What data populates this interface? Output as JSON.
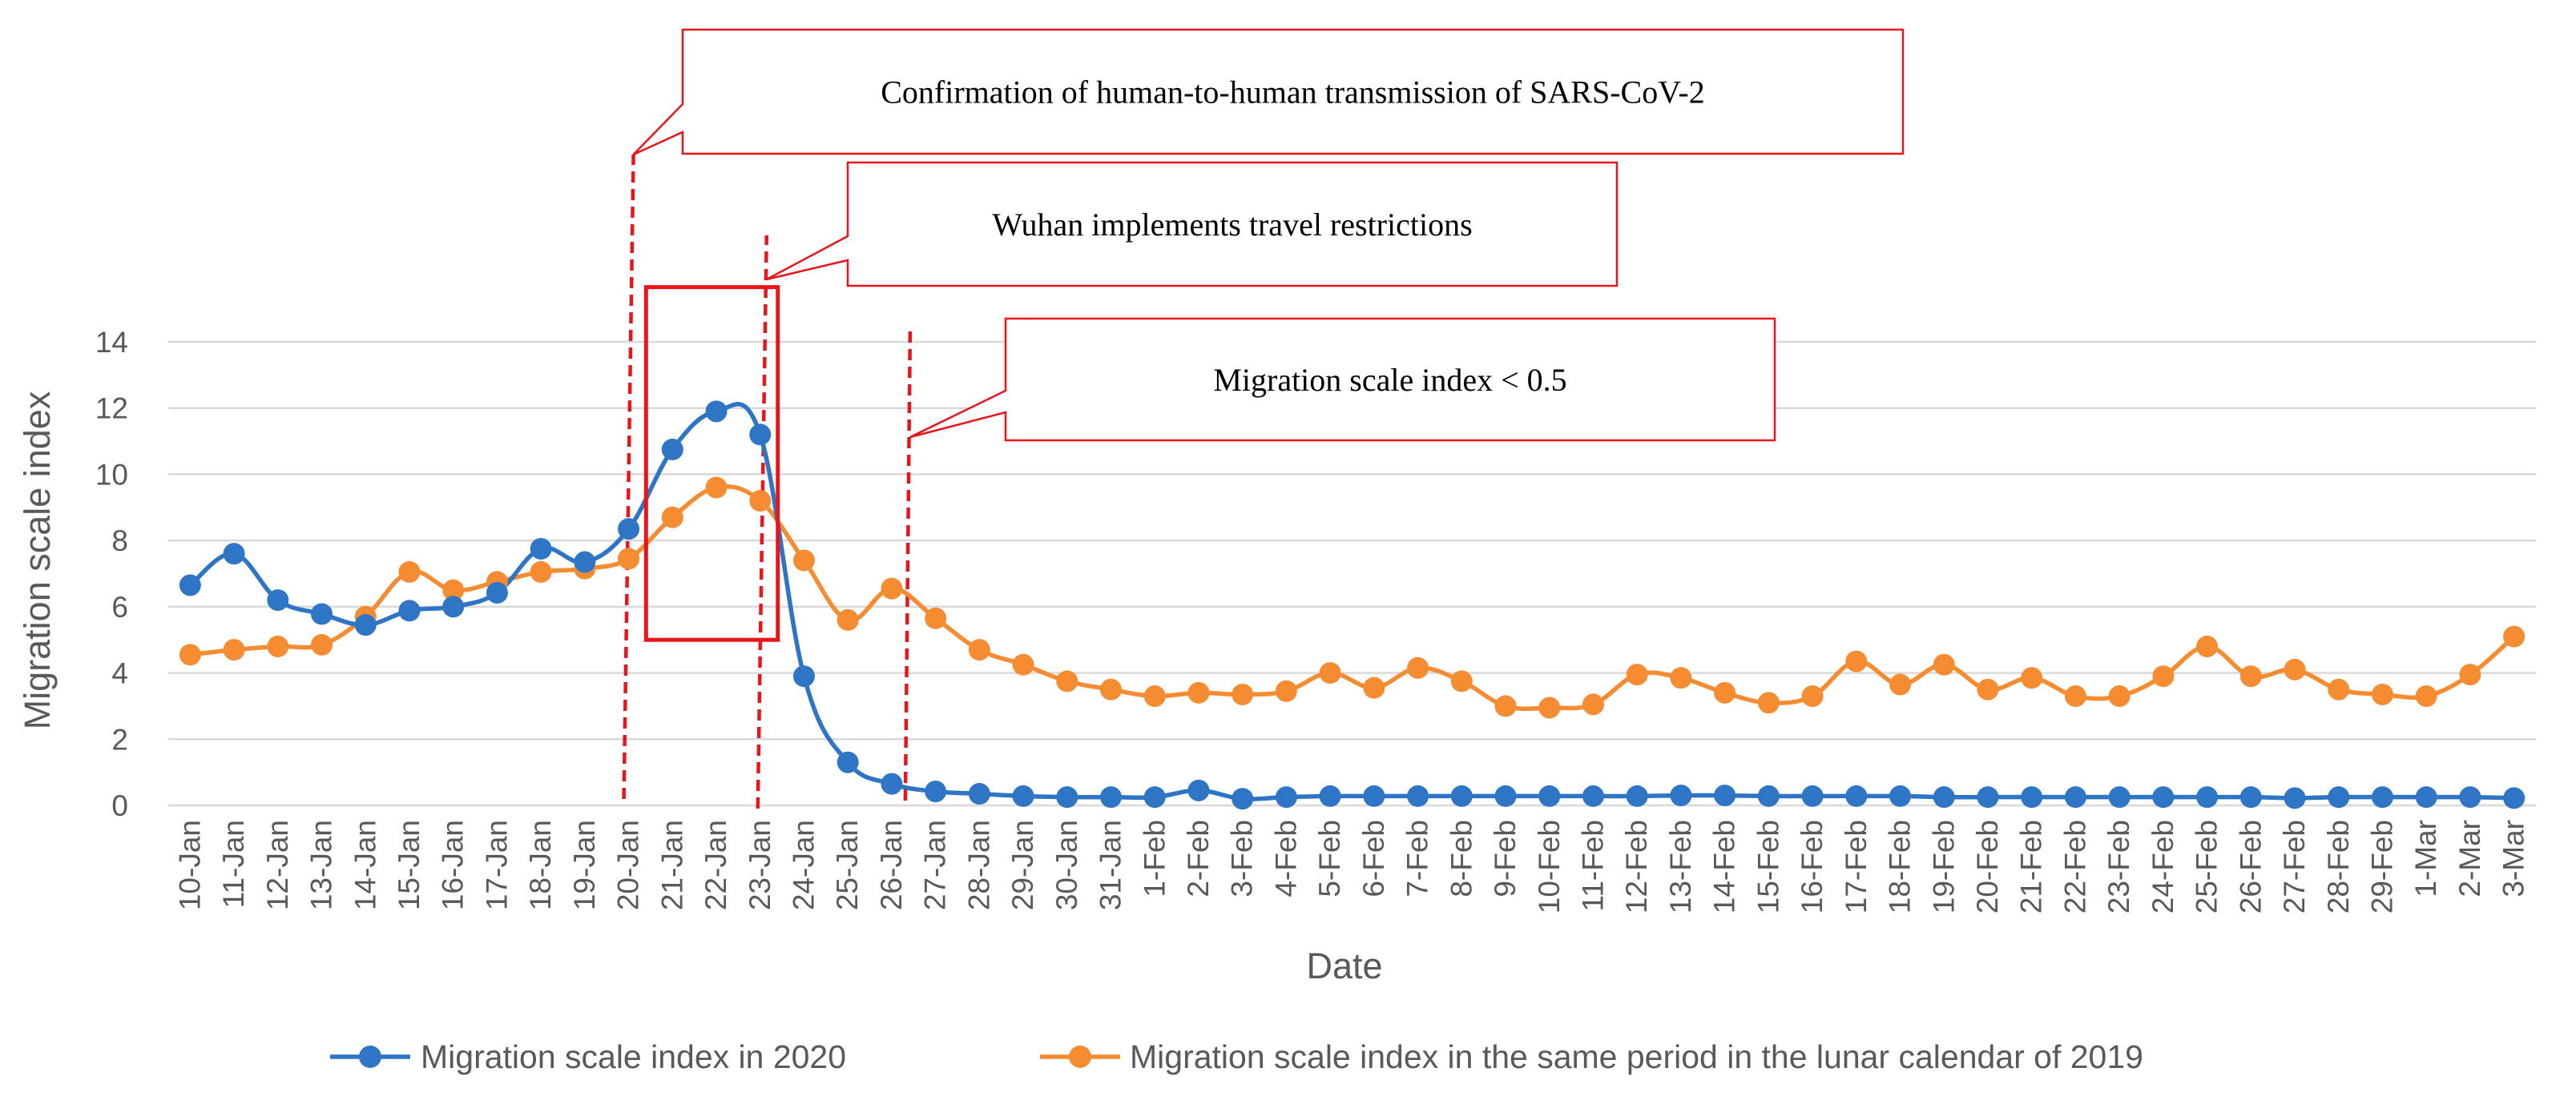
{
  "chart_data": {
    "type": "line",
    "title": "",
    "xlabel": "Date",
    "ylabel": "Migration scale index",
    "ylim": [
      0,
      14
    ],
    "yticks": [
      0,
      2,
      4,
      6,
      8,
      10,
      12,
      14
    ],
    "grid": true,
    "legend_position": "bottom",
    "categories": [
      "10-Jan",
      "11-Jan",
      "12-Jan",
      "13-Jan",
      "14-Jan",
      "15-Jan",
      "16-Jan",
      "17-Jan",
      "18-Jan",
      "19-Jan",
      "20-Jan",
      "21-Jan",
      "22-Jan",
      "23-Jan",
      "24-Jan",
      "25-Jan",
      "26-Jan",
      "27-Jan",
      "28-Jan",
      "29-Jan",
      "30-Jan",
      "31-Jan",
      "1-Feb",
      "2-Feb",
      "3-Feb",
      "4-Feb",
      "5-Feb",
      "6-Feb",
      "7-Feb",
      "8-Feb",
      "9-Feb",
      "10-Feb",
      "11-Feb",
      "12-Feb",
      "13-Feb",
      "14-Feb",
      "15-Feb",
      "16-Feb",
      "17-Feb",
      "18-Feb",
      "19-Feb",
      "20-Feb",
      "21-Feb",
      "22-Feb",
      "23-Feb",
      "24-Feb",
      "25-Feb",
      "26-Feb",
      "27-Feb",
      "28-Feb",
      "29-Feb",
      "1-Mar",
      "2-Mar",
      "3-Mar"
    ],
    "series": [
      {
        "name": "Migration scale index in 2020",
        "color": "#2E75C6",
        "values": [
          6.65,
          7.6,
          6.2,
          5.78,
          5.45,
          5.88,
          6.0,
          6.42,
          7.75,
          7.35,
          8.35,
          10.75,
          11.9,
          11.2,
          3.9,
          1.3,
          0.65,
          0.42,
          0.35,
          0.28,
          0.25,
          0.25,
          0.25,
          0.45,
          0.2,
          0.25,
          0.28,
          0.28,
          0.28,
          0.28,
          0.28,
          0.28,
          0.28,
          0.28,
          0.3,
          0.3,
          0.28,
          0.28,
          0.28,
          0.28,
          0.25,
          0.25,
          0.25,
          0.25,
          0.25,
          0.25,
          0.25,
          0.25,
          0.22,
          0.25,
          0.25,
          0.25,
          0.25,
          0.22
        ]
      },
      {
        "name": "Migration scale index in the same period in the lunar calendar of 2019",
        "color": "#F58C32",
        "values": [
          4.55,
          4.7,
          4.8,
          4.85,
          5.7,
          7.05,
          6.5,
          6.75,
          7.05,
          7.15,
          7.45,
          8.7,
          9.6,
          9.2,
          7.4,
          5.6,
          6.55,
          5.65,
          4.7,
          4.25,
          3.75,
          3.5,
          3.3,
          3.4,
          3.35,
          3.45,
          4.0,
          3.55,
          4.15,
          3.75,
          3.0,
          2.95,
          3.05,
          3.95,
          3.85,
          3.4,
          3.1,
          3.3,
          4.35,
          3.65,
          4.25,
          3.5,
          3.85,
          3.3,
          3.3,
          3.9,
          4.8,
          3.9,
          4.1,
          3.5,
          3.35,
          3.3,
          3.95,
          5.1
        ]
      }
    ],
    "annotations": [
      {
        "text": "Confirmation of human-to-human transmission of SARS-CoV-2",
        "marker_date": "20-Jan"
      },
      {
        "text": "Wuhan implements travel restrictions",
        "marker_date": "23-Jan"
      },
      {
        "text": "Migration scale index < 0.5",
        "marker_date": "26-Jan"
      }
    ],
    "highlight_box": {
      "from_date": "21-Jan",
      "to_date": "23-Jan",
      "y_range": [
        5,
        15
      ]
    }
  }
}
